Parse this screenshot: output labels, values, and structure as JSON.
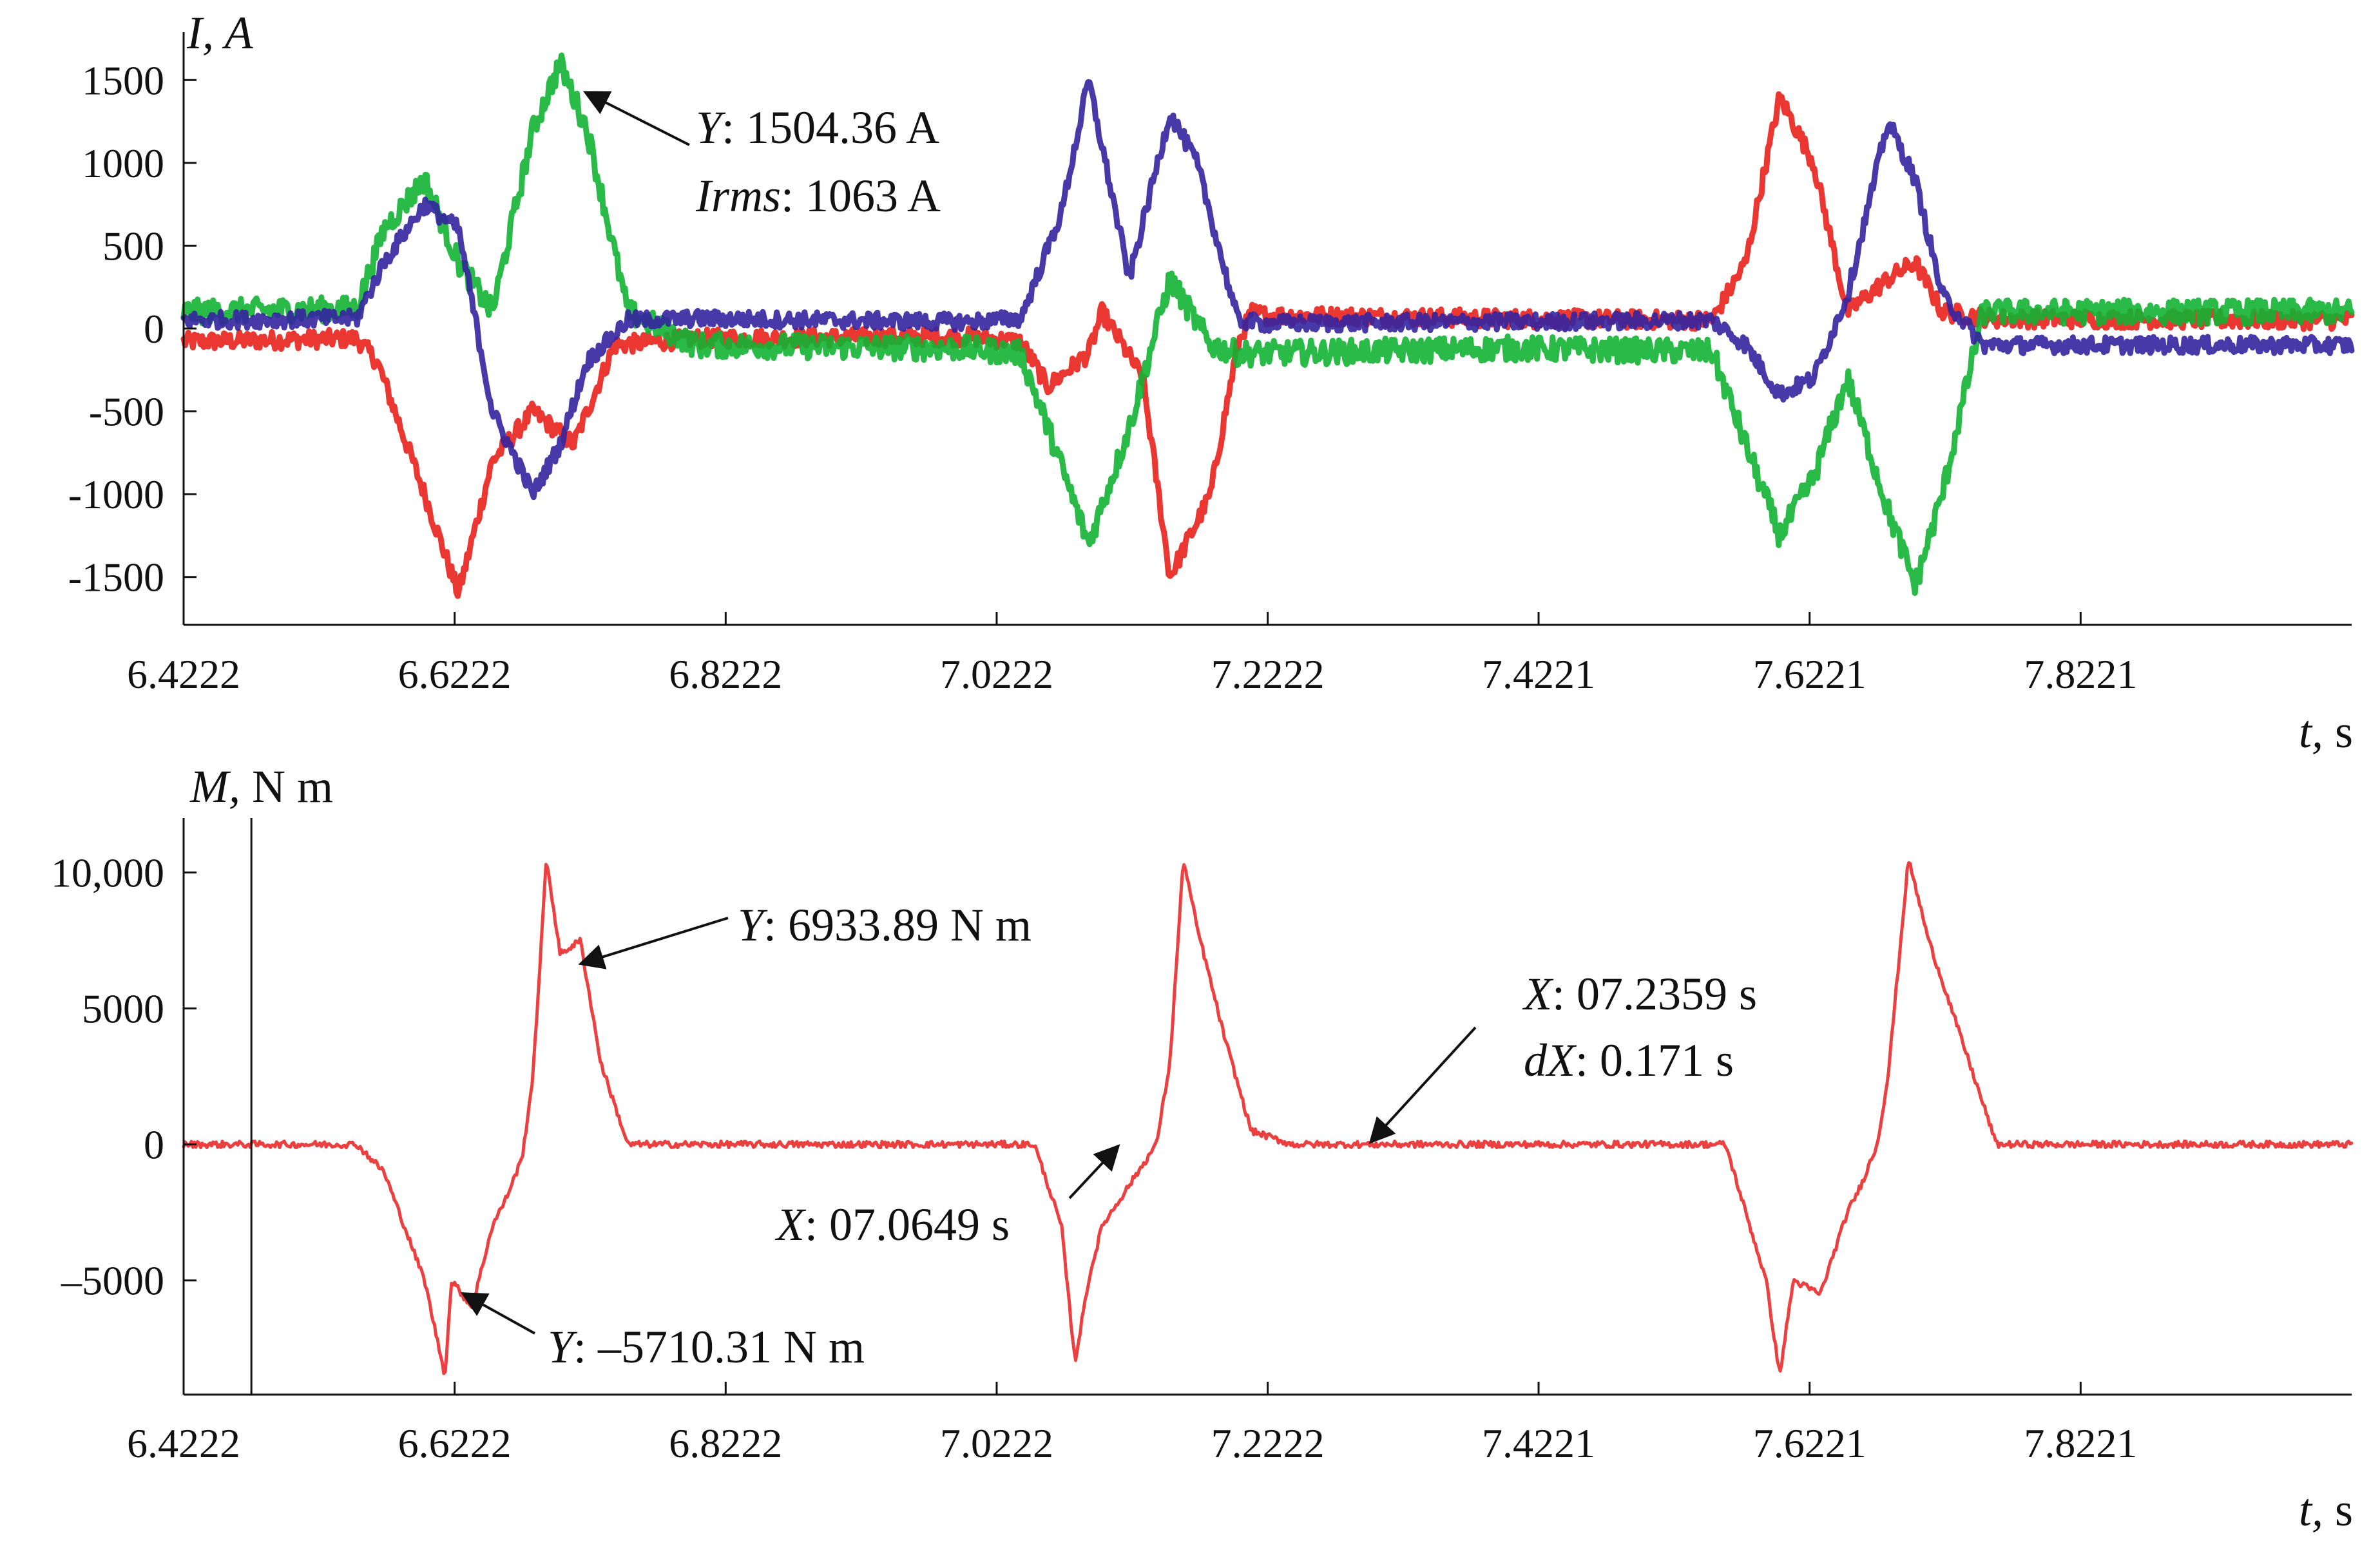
{
  "chart_data": [
    {
      "type": "line",
      "title": "",
      "ylabel_var": "I,",
      "ylabel_unit": " A",
      "xlabel_var": "t,",
      "xlabel_unit": " s",
      "xlim": [
        6.4222,
        8.0221
      ],
      "ylim": [
        -1750,
        1750
      ],
      "x_tick_values": [
        6.4222,
        6.6222,
        6.8222,
        7.0222,
        7.2222,
        7.4221,
        7.6221,
        7.8221
      ],
      "x_tick_labels": [
        "6.4222",
        "6.6222",
        "6.8222",
        "7.0222",
        "7.2222",
        "7.4221",
        "7.6221",
        "7.8221"
      ],
      "y_tick_values": [
        1500,
        1000,
        500,
        0,
        -500,
        -1000,
        -1500
      ],
      "y_tick_labels": [
        "1500",
        "1000",
        "500",
        "0",
        "-500",
        "-1000",
        "-1500"
      ],
      "series": [
        {
          "name": "phase-red",
          "color": "#e8211c",
          "noise": 55,
          "x": [
            6.4222,
            6.55,
            6.565,
            6.6,
            6.625,
            6.65,
            6.68,
            6.71,
            6.72,
            6.74,
            6.8,
            7.0,
            7.04,
            7.06,
            7.09,
            7.1,
            7.13,
            7.15,
            7.18,
            7.2,
            7.21,
            7.22,
            7.4,
            7.55,
            7.575,
            7.6,
            7.625,
            7.65,
            7.68,
            7.7,
            7.72,
            7.74,
            7.76,
            8.0221
          ],
          "values": [
            -80,
            -60,
            -200,
            -1000,
            -1600,
            -800,
            -500,
            -700,
            -500,
            -100,
            -60,
            -50,
            -80,
            -350,
            -150,
            100,
            -300,
            -1500,
            -1000,
            -100,
            100,
            80,
            60,
            50,
            400,
            1400,
            1000,
            100,
            300,
            400,
            100,
            80,
            60,
            50
          ]
        },
        {
          "name": "phase-green",
          "color": "#13b234",
          "noise": 75,
          "x": [
            6.4222,
            6.55,
            6.57,
            6.6,
            6.625,
            6.65,
            6.68,
            6.7,
            6.72,
            6.75,
            6.8,
            7.0,
            7.04,
            7.06,
            7.09,
            7.12,
            7.15,
            7.18,
            7.2,
            7.22,
            7.4,
            7.55,
            7.575,
            7.6,
            7.625,
            7.65,
            7.68,
            7.7,
            7.72,
            7.75,
            8.0221
          ],
          "values": [
            100,
            120,
            600,
            900,
            400,
            100,
            1200,
            1600,
            1200,
            100,
            -100,
            -120,
            -150,
            -600,
            -1300,
            -600,
            300,
            -100,
            -150,
            -150,
            -120,
            -140,
            -700,
            -1250,
            -900,
            -300,
            -1100,
            -1550,
            -1000,
            100,
            100
          ]
        },
        {
          "name": "phase-blue",
          "color": "#3423a0",
          "noise": 50,
          "x": [
            6.4222,
            6.55,
            6.57,
            6.6,
            6.625,
            6.65,
            6.68,
            6.7,
            6.72,
            6.75,
            6.8,
            7.0,
            7.04,
            7.07,
            7.09,
            7.12,
            7.15,
            7.17,
            7.2,
            7.22,
            7.4,
            7.55,
            7.575,
            7.6,
            7.625,
            7.65,
            7.68,
            7.7,
            7.72,
            7.75,
            8.0221
          ],
          "values": [
            50,
            60,
            400,
            750,
            600,
            -500,
            -1000,
            -700,
            -200,
            50,
            60,
            40,
            60,
            700,
            1500,
            300,
            1300,
            1000,
            50,
            30,
            40,
            50,
            -100,
            -400,
            -300,
            200,
            1250,
            900,
            200,
            -100,
            -100
          ]
        }
      ],
      "annotations": [
        {
          "var": "Y",
          "value_text": ": 1504.36 A",
          "target_x": 6.681,
          "target_y": 1500
        },
        {
          "var": "Irms",
          "value_text": ": 1063 A"
        }
      ]
    },
    {
      "type": "line",
      "title": "",
      "ylabel_var": "M,",
      "ylabel_unit": " N m",
      "xlabel_var": "t,",
      "xlabel_unit": " s",
      "xlim": [
        6.4222,
        8.0221
      ],
      "ylim": [
        -9200,
        12000
      ],
      "x_tick_values": [
        6.4222,
        6.6222,
        6.8222,
        7.0222,
        7.2222,
        7.4221,
        7.6221,
        7.8221
      ],
      "x_tick_labels": [
        "6.4222",
        "6.6222",
        "6.8222",
        "7.0222",
        "7.2222",
        "7.4221",
        "7.6221",
        "7.8221"
      ],
      "y_tick_values": [
        10000,
        5000,
        0,
        -5000
      ],
      "y_tick_labels": [
        "10,000",
        "5000",
        "0",
        "–5000"
      ],
      "cursor_x": 6.4722,
      "series": [
        {
          "name": "torque",
          "color": "#ea2a2a",
          "noise": 120,
          "x": [
            6.4222,
            6.55,
            6.57,
            6.585,
            6.6,
            6.615,
            6.62,
            6.635,
            6.65,
            6.66,
            6.672,
            6.68,
            6.69,
            6.7,
            6.715,
            6.73,
            6.75,
            7.05,
            7.07,
            7.08,
            7.09,
            7.1,
            7.12,
            7.14,
            7.15,
            7.16,
            7.17,
            7.19,
            7.21,
            7.24,
            7.56,
            7.575,
            7.59,
            7.6,
            7.61,
            7.63,
            7.65,
            7.66,
            7.672,
            7.68,
            7.695,
            7.71,
            7.73,
            7.76,
            8.0221
          ],
          "values": [
            0,
            0,
            -1000,
            -3000,
            -5000,
            -8500,
            -5000,
            -6000,
            -3000,
            -2000,
            -500,
            2500,
            10500,
            7000,
            7500,
            3000,
            0,
            0,
            -3000,
            -8000,
            -5000,
            -3000,
            -1500,
            0,
            3000,
            10500,
            8000,
            4000,
            500,
            0,
            0,
            -2500,
            -5000,
            -8500,
            -5000,
            -5500,
            -2500,
            -1500,
            0,
            2500,
            10500,
            7500,
            4500,
            0,
            0
          ]
        }
      ],
      "annotations": [
        {
          "var": "Y",
          "value_text": ": 6933.89 N m",
          "target_x": 6.682,
          "target_y": 6934
        },
        {
          "var": "Y",
          "value_text": ": –5710.31 N m",
          "target_x": 6.62,
          "target_y": -5710
        },
        {
          "var": "X",
          "value_text": ": 07.0649 s",
          "target_x": 7.0649,
          "target_y": 0
        },
        {
          "var": "X",
          "value_text": ": 07.2359 s",
          "target_x": 7.2359,
          "target_y": 0
        },
        {
          "var": "dX",
          "value_text": ": 0.171 s"
        }
      ]
    }
  ]
}
